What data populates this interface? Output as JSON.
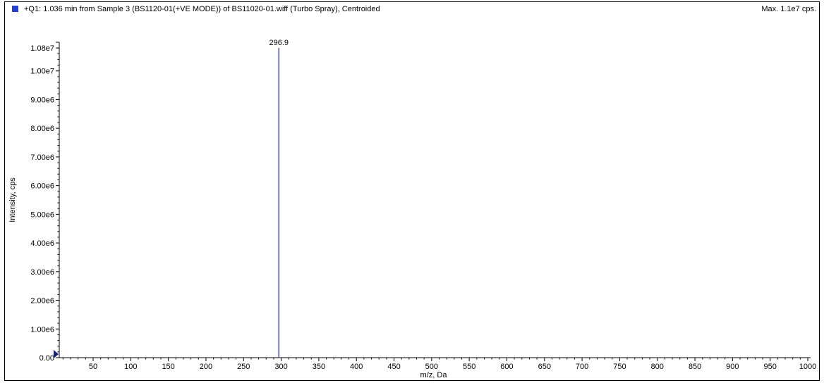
{
  "header": {
    "title": "+Q1: 1.036 min from Sample 3 (BS1120-01(+VE MODE)) of BS11020-01.wiff (Turbo Spray), Centroided",
    "max_label": "Max. 1.1e7 cps.",
    "series_color": "#1f3fd6"
  },
  "chart_data": {
    "type": "bar",
    "xlabel": "m/z, Da",
    "ylabel": "Intensity, cps",
    "xlim": [
      5,
      1000
    ],
    "ylim": [
      0,
      11000000
    ],
    "x_ticks": [
      50,
      100,
      150,
      200,
      250,
      300,
      350,
      400,
      450,
      500,
      550,
      600,
      650,
      700,
      750,
      800,
      850,
      900,
      950,
      1000
    ],
    "y_ticks": [
      {
        "value": 0,
        "label": "0.00"
      },
      {
        "value": 1000000,
        "label": "1.00e6"
      },
      {
        "value": 2000000,
        "label": "2.00e6"
      },
      {
        "value": 3000000,
        "label": "3.00e6"
      },
      {
        "value": 4000000,
        "label": "4.00e6"
      },
      {
        "value": 5000000,
        "label": "5.00e6"
      },
      {
        "value": 6000000,
        "label": "6.00e6"
      },
      {
        "value": 7000000,
        "label": "7.00e6"
      },
      {
        "value": 8000000,
        "label": "8.00e6"
      },
      {
        "value": 9000000,
        "label": "9.00e6"
      },
      {
        "value": 10000000,
        "label": "1.00e7"
      },
      {
        "value": 10800000,
        "label": "1.08e7"
      }
    ],
    "peaks": [
      {
        "mz": 296.9,
        "intensity": 10800000,
        "label": "296.9"
      }
    ],
    "series_color": "#1f3fd6",
    "grid": false
  }
}
